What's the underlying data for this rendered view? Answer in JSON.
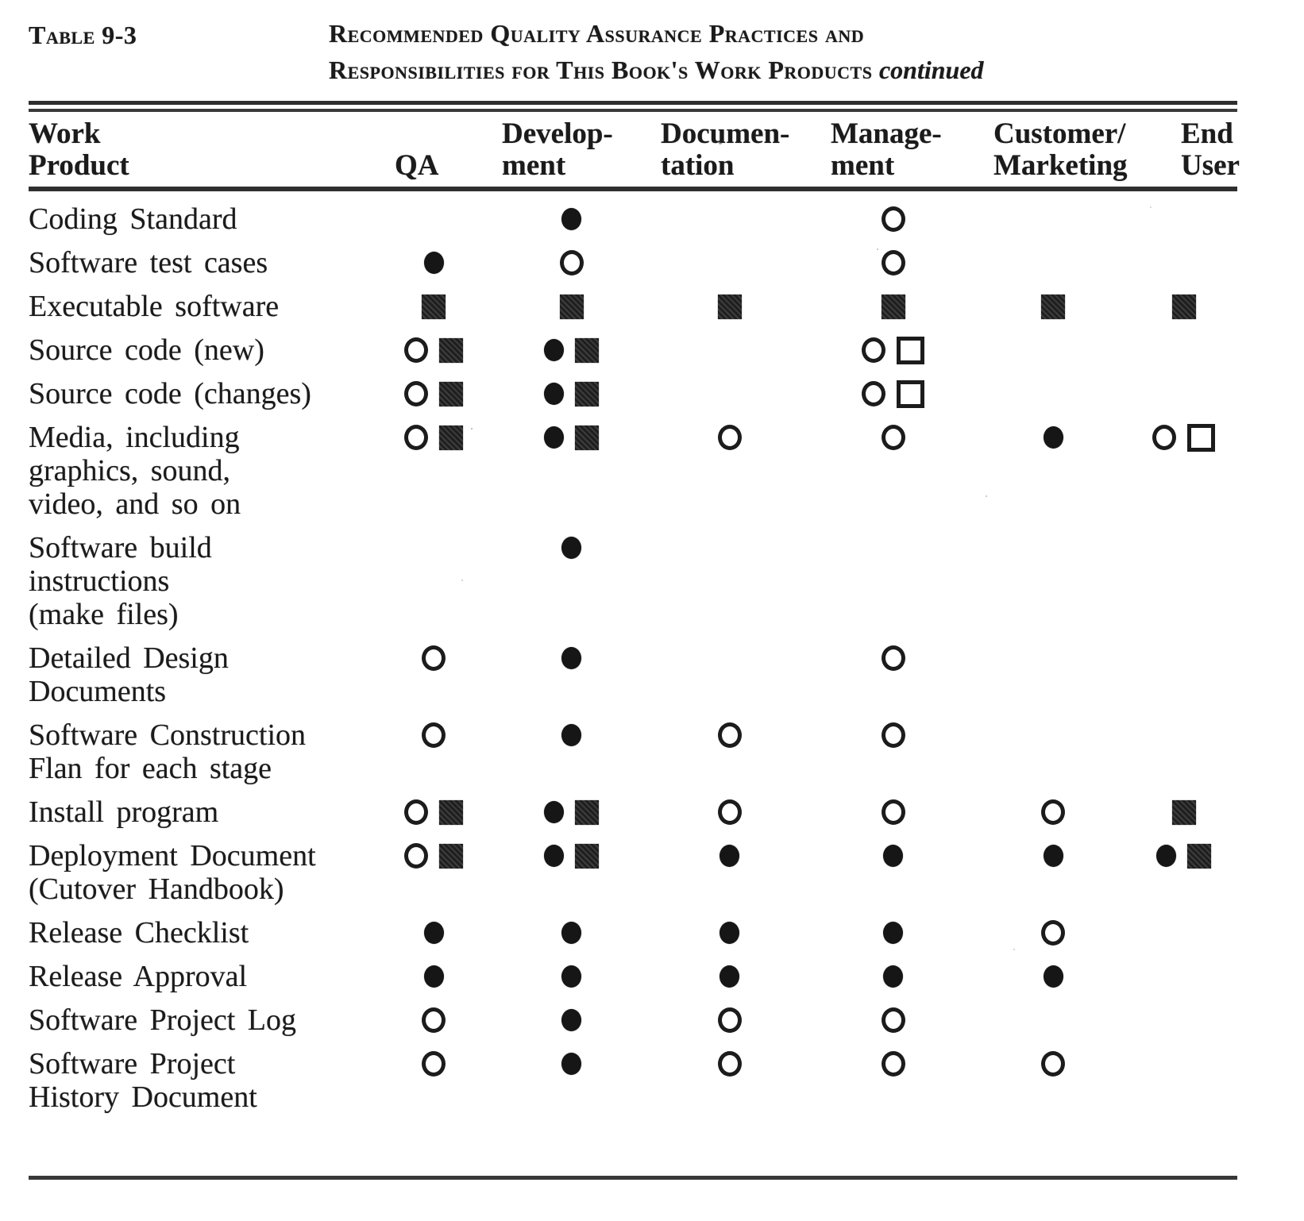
{
  "caption": {
    "label": "Table 9-3",
    "title_line1": "Recommended Quality Assurance Practices and",
    "title_line2": "Responsibilities for This Book's Work Products",
    "continued": "continued"
  },
  "header": {
    "columns": [
      {
        "id": "work-product",
        "line1": "Work",
        "line2": "Product"
      },
      {
        "id": "qa",
        "line1": "",
        "line2": "QA"
      },
      {
        "id": "development",
        "line1": "Develop-",
        "line2": "ment"
      },
      {
        "id": "documentation",
        "line1": "Documen-",
        "line2": "tation"
      },
      {
        "id": "management",
        "line1": "Manage-",
        "line2": "ment"
      },
      {
        "id": "customer-marketing",
        "line1": "Customer/",
        "line2": "Marketing"
      },
      {
        "id": "end-user",
        "line1": "End",
        "line2": "User"
      }
    ]
  },
  "symbols": {
    "filled-circle": "●",
    "open-circle": "○",
    "filled-square": "■",
    "open-square": "□"
  },
  "rows": [
    {
      "product_lines": [
        "Coding Standard"
      ],
      "cells": [
        [],
        [
          "filled-circle"
        ],
        [],
        [
          "open-circle"
        ],
        [],
        []
      ]
    },
    {
      "product_lines": [
        "Software test cases"
      ],
      "cells": [
        [
          "filled-circle"
        ],
        [
          "open-circle"
        ],
        [],
        [
          "open-circle"
        ],
        [],
        []
      ]
    },
    {
      "product_lines": [
        "Executable software"
      ],
      "cells": [
        [
          "filled-square"
        ],
        [
          "filled-square"
        ],
        [
          "filled-square"
        ],
        [
          "filled-square"
        ],
        [
          "filled-square"
        ],
        [
          "filled-square"
        ]
      ]
    },
    {
      "product_lines": [
        "Source code (new)"
      ],
      "cells": [
        [
          "open-circle",
          "filled-square"
        ],
        [
          "filled-circle",
          "filled-square"
        ],
        [],
        [
          "open-circle",
          "open-square"
        ],
        [],
        []
      ]
    },
    {
      "product_lines": [
        "Source code (changes)"
      ],
      "cells": [
        [
          "open-circle",
          "filled-square"
        ],
        [
          "filled-circle",
          "filled-square"
        ],
        [],
        [
          "open-circle",
          "open-square"
        ],
        [],
        []
      ]
    },
    {
      "product_lines": [
        "Media, including",
        "graphics, sound,",
        "video, and so on"
      ],
      "cells": [
        [
          "open-circle",
          "filled-square"
        ],
        [
          "filled-circle",
          "filled-square"
        ],
        [
          "open-circle"
        ],
        [
          "open-circle"
        ],
        [
          "filled-circle"
        ],
        [
          "open-circle",
          "open-square"
        ]
      ]
    },
    {
      "product_lines": [
        "Software  build",
        "instructions",
        "(make files)"
      ],
      "cells": [
        [],
        [
          "filled-circle"
        ],
        [],
        [],
        [],
        []
      ]
    },
    {
      "product_lines": [
        "Detailed Design",
        "Documents"
      ],
      "cells": [
        [
          "open-circle"
        ],
        [
          "filled-circle"
        ],
        [],
        [
          "open-circle"
        ],
        [],
        []
      ]
    },
    {
      "product_lines": [
        "Software  Construction",
        "Flan for each stage"
      ],
      "cells": [
        [
          "open-circle"
        ],
        [
          "filled-circle"
        ],
        [
          "open-circle"
        ],
        [
          "open-circle"
        ],
        [],
        []
      ]
    },
    {
      "product_lines": [
        "Install program"
      ],
      "cells": [
        [
          "open-circle",
          "filled-square"
        ],
        [
          "filled-circle",
          "filled-square"
        ],
        [
          "open-circle"
        ],
        [
          "open-circle"
        ],
        [
          "open-circle"
        ],
        [
          "filled-square"
        ]
      ]
    },
    {
      "product_lines": [
        "Deployment Document",
        "(Cutover  Handbook)"
      ],
      "cells": [
        [
          "open-circle",
          "filled-square"
        ],
        [
          "filled-circle",
          "filled-square"
        ],
        [
          "filled-circle"
        ],
        [
          "filled-circle"
        ],
        [
          "filled-circle"
        ],
        [
          "filled-circle",
          "filled-square"
        ]
      ]
    },
    {
      "product_lines": [
        "Release  Checklist"
      ],
      "cells": [
        [
          "filled-circle"
        ],
        [
          "filled-circle"
        ],
        [
          "filled-circle"
        ],
        [
          "filled-circle"
        ],
        [
          "open-circle"
        ],
        []
      ]
    },
    {
      "product_lines": [
        "Release  Approval"
      ],
      "cells": [
        [
          "filled-circle"
        ],
        [
          "filled-circle"
        ],
        [
          "filled-circle"
        ],
        [
          "filled-circle"
        ],
        [
          "filled-circle"
        ],
        []
      ]
    },
    {
      "product_lines": [
        "Software Project Log"
      ],
      "cells": [
        [
          "open-circle"
        ],
        [
          "filled-circle"
        ],
        [
          "open-circle"
        ],
        [
          "open-circle"
        ],
        [],
        []
      ]
    },
    {
      "product_lines": [
        "Software Project",
        "History Document"
      ],
      "cells": [
        [
          "open-circle"
        ],
        [
          "filled-circle"
        ],
        [
          "open-circle"
        ],
        [
          "open-circle"
        ],
        [
          "open-circle"
        ],
        []
      ]
    }
  ]
}
